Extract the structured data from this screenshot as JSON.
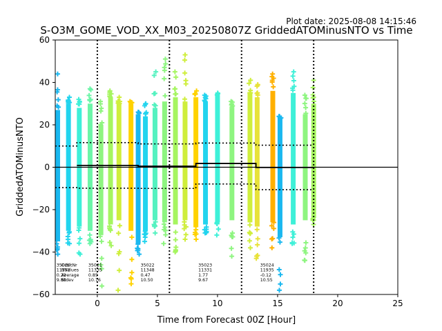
{
  "chart_data": {
    "type": "scatter",
    "title": "S-O3M_GOME_VOD_XX_M03_20250807Z GriddedATOMinusNTO vs Time",
    "plot_date": "Plot date: 2025-08-08 14:15:46",
    "xlabel": "Time from Forecast 00Z [Hour]",
    "ylabel": "GriddedATOMinusNTO",
    "xlim": [
      -3.5,
      25
    ],
    "ylim": [
      -60,
      60
    ],
    "xticks": [
      0,
      5,
      10,
      15,
      20,
      25
    ],
    "yticks": [
      -60,
      -40,
      -20,
      0,
      20,
      40,
      60
    ],
    "grid": false,
    "vlines": [
      0,
      6,
      12,
      18
    ],
    "zero_line": 0,
    "mean_steps": [
      {
        "x0": -1.7,
        "x1": 3.4,
        "y": 0.85
      },
      {
        "x0": 3.4,
        "x1": 8.2,
        "y": 0.47
      },
      {
        "x0": 8.2,
        "x1": 13.2,
        "y": 1.77
      },
      {
        "x0": 13.2,
        "x1": 18.0,
        "y": -0.12
      }
    ],
    "stdev_upper_steps": [
      {
        "x0": -3.5,
        "x1": -1.7,
        "y": 10.0
      },
      {
        "x0": -1.7,
        "x1": 3.4,
        "y": 11.6
      },
      {
        "x0": 3.4,
        "x1": 8.2,
        "y": 11.0
      },
      {
        "x0": 8.2,
        "x1": 13.2,
        "y": 11.4
      },
      {
        "x0": 13.2,
        "x1": 18.0,
        "y": 10.4
      }
    ],
    "stdev_lower_steps": [
      {
        "x0": -3.5,
        "x1": -1.7,
        "y": -9.6
      },
      {
        "x0": -1.7,
        "x1": 3.4,
        "y": -9.9
      },
      {
        "x0": 3.4,
        "x1": 8.2,
        "y": -10.0
      },
      {
        "x0": 8.2,
        "x1": 13.2,
        "y": -7.9
      },
      {
        "x0": 13.2,
        "x1": 18.0,
        "y": -10.6
      }
    ],
    "strips": [
      {
        "x": -3.3,
        "lo": -35,
        "hi": 27,
        "min": -41,
        "max": 44,
        "color": "#1ab8f0"
      },
      {
        "x": -2.4,
        "lo": -30,
        "hi": 30,
        "min": -36,
        "max": 33,
        "color": "#22d4ee"
      },
      {
        "x": -1.5,
        "lo": -28,
        "hi": 28,
        "min": -41,
        "max": 32,
        "color": "#3ef0d8"
      },
      {
        "x": -0.6,
        "lo": -30,
        "hi": 30,
        "min": -36,
        "max": 37,
        "color": "#6cf5a8"
      },
      {
        "x": 0.3,
        "lo": -32,
        "hi": 20,
        "min": -56,
        "max": 31,
        "color": "#8ef580"
      },
      {
        "x": 1.1,
        "lo": -27,
        "hi": 33,
        "min": -37,
        "max": 36,
        "color": "#a6f560"
      },
      {
        "x": 1.8,
        "lo": -25,
        "hi": 30,
        "min": -58,
        "max": 33,
        "color": "#cfee3c"
      },
      {
        "x": 2.8,
        "lo": -30,
        "hi": 30,
        "min": -55,
        "max": 31,
        "color": "#ffd200"
      },
      {
        "x": 3.4,
        "lo": -36,
        "hi": 25,
        "min": -41,
        "max": 26,
        "color": "#1ab8f0"
      },
      {
        "x": 4.0,
        "lo": -30,
        "hi": 24,
        "min": -35,
        "max": 30,
        "color": "#22d4ee"
      },
      {
        "x": 4.8,
        "lo": -25,
        "hi": 28,
        "min": -31,
        "max": 45,
        "color": "#55f2c0"
      },
      {
        "x": 5.6,
        "lo": -26,
        "hi": 31,
        "min": -36,
        "max": 51,
        "color": "#8ef580"
      },
      {
        "x": 6.5,
        "lo": -27,
        "hi": 33,
        "min": -40,
        "max": 45,
        "color": "#a6f560"
      },
      {
        "x": 7.3,
        "lo": -25,
        "hi": 31,
        "min": -34,
        "max": 53,
        "color": "#cfee3c"
      },
      {
        "x": 8.2,
        "lo": -28,
        "hi": 33,
        "min": -34,
        "max": 36,
        "color": "#ffd200"
      },
      {
        "x": 9.0,
        "lo": -27,
        "hi": 31,
        "min": -31,
        "max": 34,
        "color": "#22d4ee"
      },
      {
        "x": 10.0,
        "lo": -26,
        "hi": 34,
        "min": -32,
        "max": 35,
        "color": "#3ef0d8"
      },
      {
        "x": 11.2,
        "lo": -25,
        "hi": 28,
        "min": -42,
        "max": 31,
        "color": "#8ef580"
      },
      {
        "x": 12.7,
        "lo": -26,
        "hi": 35,
        "min": -38,
        "max": 41,
        "color": "#cfee3c"
      },
      {
        "x": 13.3,
        "lo": -28,
        "hi": 33,
        "min": -43,
        "max": 39,
        "color": "#e8e23a"
      },
      {
        "x": 14.6,
        "lo": -26,
        "hi": 36,
        "min": -38,
        "max": 44,
        "color": "#ffb000"
      },
      {
        "x": 15.2,
        "lo": -33,
        "hi": 23,
        "min": -58,
        "max": 24,
        "color": "#1ab8f0"
      },
      {
        "x": 16.3,
        "lo": -27,
        "hi": 35,
        "min": -36,
        "max": 45,
        "color": "#3ef0d8"
      },
      {
        "x": 17.3,
        "lo": -25,
        "hi": 25,
        "min": -44,
        "max": 34,
        "color": "#8ef580"
      },
      {
        "x": 18.0,
        "lo": -24,
        "hi": 30,
        "min": -27,
        "max": 41,
        "color": "#a6f560"
      }
    ],
    "annotations": [
      {
        "x": -3.4,
        "lines": [
          "35020",
          "11352",
          "0.22",
          "9.80"
        ]
      },
      {
        "x": -0.75,
        "lines": [
          "35021",
          "11335",
          "0.85",
          "10.76"
        ]
      },
      {
        "x": 3.6,
        "lines": [
          "35022",
          "11348",
          "0.47",
          "10.50"
        ]
      },
      {
        "x": 8.4,
        "lines": [
          "35023",
          "11331",
          "1.77",
          "9.67"
        ]
      },
      {
        "x": 13.55,
        "lines": [
          "35024",
          "11935",
          "-0.12",
          "10.55"
        ]
      }
    ],
    "row_labels": {
      "x": -3.0,
      "lines": [
        "OrbitNr",
        "NValues",
        "Average",
        "Stdev"
      ]
    }
  }
}
